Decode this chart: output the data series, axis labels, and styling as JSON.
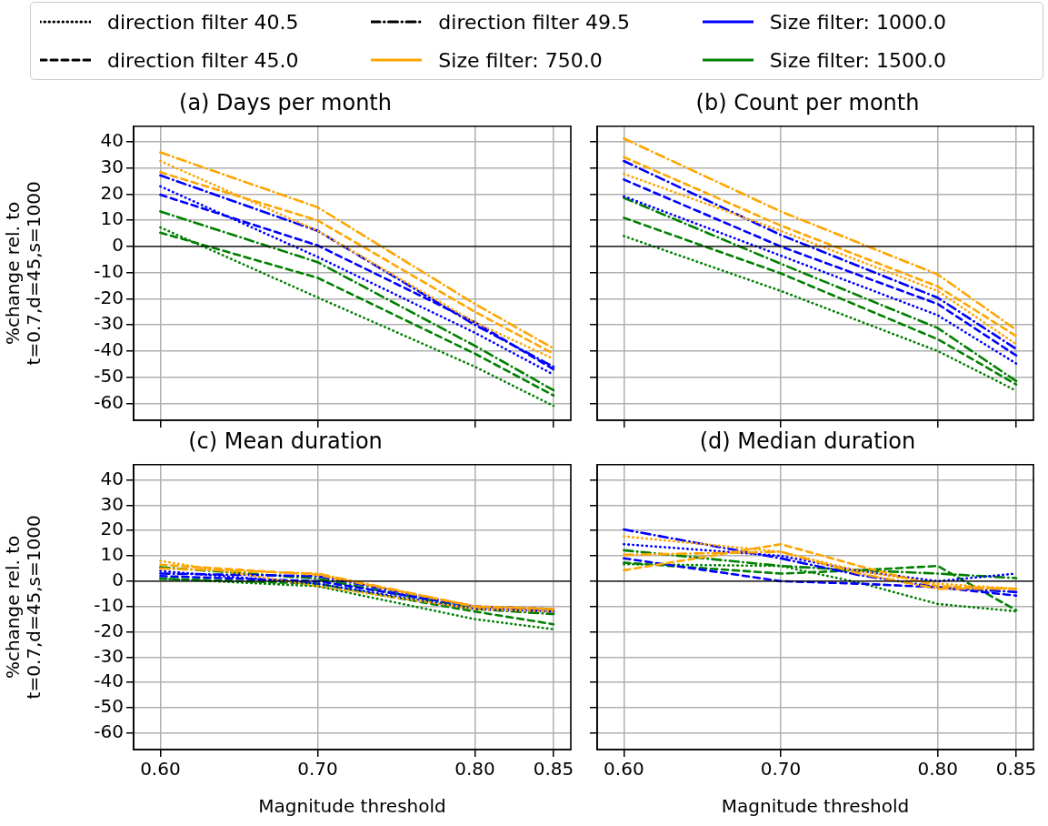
{
  "chart_data": [
    {
      "type": "line",
      "title": "(a) Days per month",
      "ylabel": "%change rel. to\nt=0.7,d=45,s=1000",
      "x": [
        0.6,
        0.7,
        0.8,
        0.85
      ],
      "xlim": [
        0.583,
        0.861
      ],
      "ylim": [
        -66.5,
        46
      ],
      "xticks": [
        0.6,
        0.7,
        0.8,
        0.85
      ],
      "yticks": [
        -60,
        -50,
        -40,
        -30,
        -20,
        -10,
        0,
        10,
        20,
        30,
        40
      ],
      "grid": true,
      "tick_labels": "y",
      "legend": "top",
      "ref_lines": [
        {
          "axis": "y",
          "value": 0,
          "color": "#000000"
        }
      ],
      "series": [
        {
          "name": "direction filter 40.5",
          "color": "#000000",
          "line_style": "dotted",
          "values": [
            null,
            null,
            null,
            null
          ]
        },
        {
          "name": "direction filter 45.0",
          "color": "#000000",
          "line_style": "dashed",
          "values": [
            null,
            null,
            null,
            null
          ]
        },
        {
          "name": "direction filter 49.5",
          "color": "#000000",
          "line_style": "dashdot",
          "values": [
            null,
            null,
            null,
            null
          ]
        },
        {
          "name": "Size filter: 750.0",
          "color": "#ffa500",
          "line_style": "solid",
          "values": [
            null,
            null,
            null,
            null
          ]
        },
        {
          "name": "Size filter: 1000.0",
          "color": "#0000ff",
          "line_style": "solid",
          "values": [
            null,
            null,
            null,
            null
          ]
        },
        {
          "name": "Size filter: 1500.0",
          "color": "#008000",
          "line_style": "solid",
          "values": [
            null,
            null,
            null,
            null
          ]
        },
        {
          "color": "#ffa500",
          "line_style": "dotted",
          "values": [
            32.7,
            6,
            -29,
            -43
          ]
        },
        {
          "color": "#ffa500",
          "line_style": "dashed",
          "values": [
            28.4,
            10,
            -25,
            -41
          ]
        },
        {
          "color": "#ffa500",
          "line_style": "dashdot",
          "values": [
            36,
            15,
            -22,
            -39
          ]
        },
        {
          "color": "#0000ff",
          "line_style": "dotted",
          "values": [
            23,
            -4,
            -33,
            -49
          ]
        },
        {
          "color": "#0000ff",
          "line_style": "dashed",
          "values": [
            19.8,
            0.4,
            -29,
            -47
          ]
        },
        {
          "color": "#0000ff",
          "line_style": "dashdot",
          "values": [
            27.2,
            6,
            -30,
            -46
          ]
        },
        {
          "color": "#008000",
          "line_style": "dotted",
          "values": [
            7.3,
            -19.5,
            -46,
            -61
          ]
        },
        {
          "color": "#008000",
          "line_style": "dashed",
          "values": [
            5.3,
            -12,
            -41,
            -57
          ]
        },
        {
          "color": "#008000",
          "line_style": "dashdot",
          "values": [
            13.4,
            -6,
            -38,
            -55
          ]
        }
      ]
    },
    {
      "type": "line",
      "title": "(b) Count per month",
      "x": [
        0.6,
        0.7,
        0.8,
        0.85
      ],
      "xlim": [
        0.583,
        0.861
      ],
      "ylim": [
        -66.5,
        46
      ],
      "xticks": [
        0.6,
        0.7,
        0.8,
        0.85
      ],
      "yticks": [
        -60,
        -50,
        -40,
        -30,
        -20,
        -10,
        0,
        10,
        20,
        30,
        40
      ],
      "grid": true,
      "tick_labels": false,
      "ref_lines": [
        {
          "axis": "y",
          "value": 0,
          "color": "#000000"
        }
      ],
      "series": [
        {
          "color": "#ffa500",
          "line_style": "dotted",
          "values": [
            27.8,
            6,
            -17,
            -37.4
          ]
        },
        {
          "color": "#ffa500",
          "line_style": "dashed",
          "values": [
            34.2,
            8,
            -15.3,
            -34.3
          ]
        },
        {
          "color": "#ffa500",
          "line_style": "dashdot",
          "values": [
            41.3,
            13.4,
            -10.7,
            -31.9
          ]
        },
        {
          "color": "#0000ff",
          "line_style": "dotted",
          "values": [
            19.2,
            -3.5,
            -26.3,
            -44.8
          ]
        },
        {
          "color": "#0000ff",
          "line_style": "dashed",
          "values": [
            25.6,
            0,
            -22,
            -41.7
          ]
        },
        {
          "color": "#0000ff",
          "line_style": "dashdot",
          "values": [
            32.7,
            4.4,
            -19.6,
            -39.2
          ]
        },
        {
          "color": "#008000",
          "line_style": "dotted",
          "values": [
            4,
            -17,
            -40,
            -55.2
          ]
        },
        {
          "color": "#008000",
          "line_style": "dashed",
          "values": [
            11,
            -10.3,
            -35.5,
            -52.8
          ]
        },
        {
          "color": "#008000",
          "line_style": "dashdot",
          "values": [
            18.6,
            -6.6,
            -31.2,
            -51.5
          ]
        }
      ]
    },
    {
      "type": "line",
      "title": "(c) Mean duration",
      "xlabel": "Magnitude threshold",
      "ylabel": "%change rel. to\nt=0.7,d=45,s=1000",
      "x": [
        0.6,
        0.7,
        0.8,
        0.85
      ],
      "xlim": [
        0.583,
        0.861
      ],
      "ylim": [
        -66.5,
        46
      ],
      "xticks": [
        {
          "value": 0.6,
          "label": "0.60"
        },
        {
          "value": 0.7,
          "label": "0.70"
        },
        {
          "value": 0.8,
          "label": "0.80"
        },
        {
          "value": 0.85,
          "label": "0.85"
        }
      ],
      "yticks": [
        -60,
        -50,
        -40,
        -30,
        -20,
        -10,
        0,
        10,
        20,
        30,
        40
      ],
      "grid": true,
      "ref_lines": [
        {
          "axis": "y",
          "value": 0,
          "color": "#000000"
        }
      ],
      "series": [
        {
          "color": "#ffa500",
          "line_style": "dotted",
          "values": [
            8,
            -2,
            -11,
            -12
          ]
        },
        {
          "color": "#ffa500",
          "line_style": "dashed",
          "values": [
            6.5,
            2.5,
            -10,
            -11
          ]
        },
        {
          "color": "#ffa500",
          "line_style": "dashdot",
          "values": [
            5,
            3,
            -10,
            -11
          ]
        },
        {
          "color": "#0000ff",
          "line_style": "dotted",
          "values": [
            4,
            -1,
            -11,
            -12
          ]
        },
        {
          "color": "#0000ff",
          "line_style": "dashed",
          "values": [
            2,
            0,
            -10,
            -11
          ]
        },
        {
          "color": "#0000ff",
          "line_style": "dashdot",
          "values": [
            3,
            2,
            -10,
            -12
          ]
        },
        {
          "color": "#008000",
          "line_style": "dotted",
          "values": [
            1,
            -2,
            -15,
            -19
          ]
        },
        {
          "color": "#008000",
          "line_style": "dashed",
          "values": [
            1,
            -1,
            -12,
            -17
          ]
        },
        {
          "color": "#008000",
          "line_style": "dashdot",
          "values": [
            5.5,
            1,
            -11,
            -13
          ]
        }
      ]
    },
    {
      "type": "line",
      "title": "(d) Median duration",
      "xlabel": "Magnitude threshold",
      "x": [
        0.6,
        0.7,
        0.75,
        0.8,
        0.85
      ],
      "xlim": [
        0.583,
        0.861
      ],
      "ylim": [
        -66.5,
        46
      ],
      "xticks": [
        {
          "value": 0.6,
          "label": "0.60"
        },
        {
          "value": 0.7,
          "label": "0.70"
        },
        {
          "value": 0.8,
          "label": "0.80"
        },
        {
          "value": 0.85,
          "label": "0.85"
        }
      ],
      "yticks": [
        -60,
        -50,
        -40,
        -30,
        -20,
        -10,
        0,
        10,
        20,
        30,
        40
      ],
      "grid": true,
      "tick_labels": "x",
      "ref_lines": [
        {
          "axis": "y",
          "value": 0,
          "color": "#000000"
        }
      ],
      "series": [
        {
          "color": "#ffa500",
          "line_style": "dotted",
          "values": [
            17.7,
            11.6,
            4,
            -1,
            -3
          ]
        },
        {
          "color": "#ffa500",
          "line_style": "dashed",
          "values": [
            4.3,
            14.6,
            6,
            -2,
            -3
          ]
        },
        {
          "color": "#ffa500",
          "line_style": "dashdot",
          "values": [
            10.4,
            11.6,
            3,
            -3,
            -3
          ]
        },
        {
          "color": "#0000ff",
          "line_style": "dotted",
          "values": [
            14.6,
            10,
            4,
            0,
            3
          ]
        },
        {
          "color": "#0000ff",
          "line_style": "dashed",
          "values": [
            9,
            0,
            -1,
            -2.4,
            -5.7
          ]
        },
        {
          "color": "#0000ff",
          "line_style": "dashdot",
          "values": [
            20.4,
            9,
            2.4,
            -2.4,
            -4.3
          ]
        },
        {
          "color": "#008000",
          "line_style": "dotted",
          "values": [
            6.7,
            6,
            -0.6,
            -9,
            -11.9
          ]
        },
        {
          "color": "#008000",
          "line_style": "dashed",
          "values": [
            7.3,
            3,
            4.3,
            6,
            -11.5
          ]
        },
        {
          "color": "#008000",
          "line_style": "dashdot",
          "values": [
            12.2,
            6,
            4.3,
            3,
            1.2
          ]
        }
      ]
    }
  ]
}
